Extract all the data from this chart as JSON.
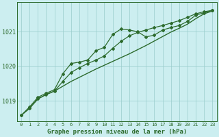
{
  "title": "Graphe pression niveau de la mer (hPa)",
  "background_color": "#cceef0",
  "line_color": "#2d6b2d",
  "grid_color": "#99cccc",
  "x_values": [
    0,
    1,
    2,
    3,
    4,
    5,
    6,
    7,
    8,
    9,
    10,
    11,
    12,
    13,
    14,
    15,
    16,
    17,
    18,
    19,
    20,
    21,
    22,
    23
  ],
  "series_smooth": [
    1018.58,
    1018.78,
    1019.05,
    1019.18,
    1019.28,
    1019.42,
    1019.56,
    1019.68,
    1019.8,
    1019.92,
    1020.03,
    1020.14,
    1020.25,
    1020.36,
    1020.48,
    1020.6,
    1020.73,
    1020.86,
    1020.99,
    1021.1,
    1021.22,
    1021.38,
    1021.52,
    1021.6
  ],
  "series_upper": [
    1018.58,
    1018.82,
    1019.1,
    1019.22,
    1019.32,
    1019.78,
    1020.08,
    1020.12,
    1020.18,
    1020.45,
    1020.55,
    1020.92,
    1021.08,
    1021.05,
    1021.0,
    1020.85,
    1020.9,
    1021.05,
    1021.12,
    1021.18,
    1021.3,
    1021.48,
    1021.55,
    1021.62
  ],
  "series_lower": [
    1018.58,
    1018.78,
    1019.06,
    1019.18,
    1019.28,
    1019.56,
    1019.82,
    1019.96,
    1020.08,
    1020.18,
    1020.3,
    1020.52,
    1020.72,
    1020.88,
    1020.98,
    1021.05,
    1021.12,
    1021.18,
    1021.25,
    1021.32,
    1021.42,
    1021.52,
    1021.58,
    1021.62
  ],
  "ylim": [
    1018.4,
    1021.85
  ],
  "yticks": [
    1019,
    1020,
    1021
  ],
  "xlim": [
    -0.5,
    23.5
  ]
}
